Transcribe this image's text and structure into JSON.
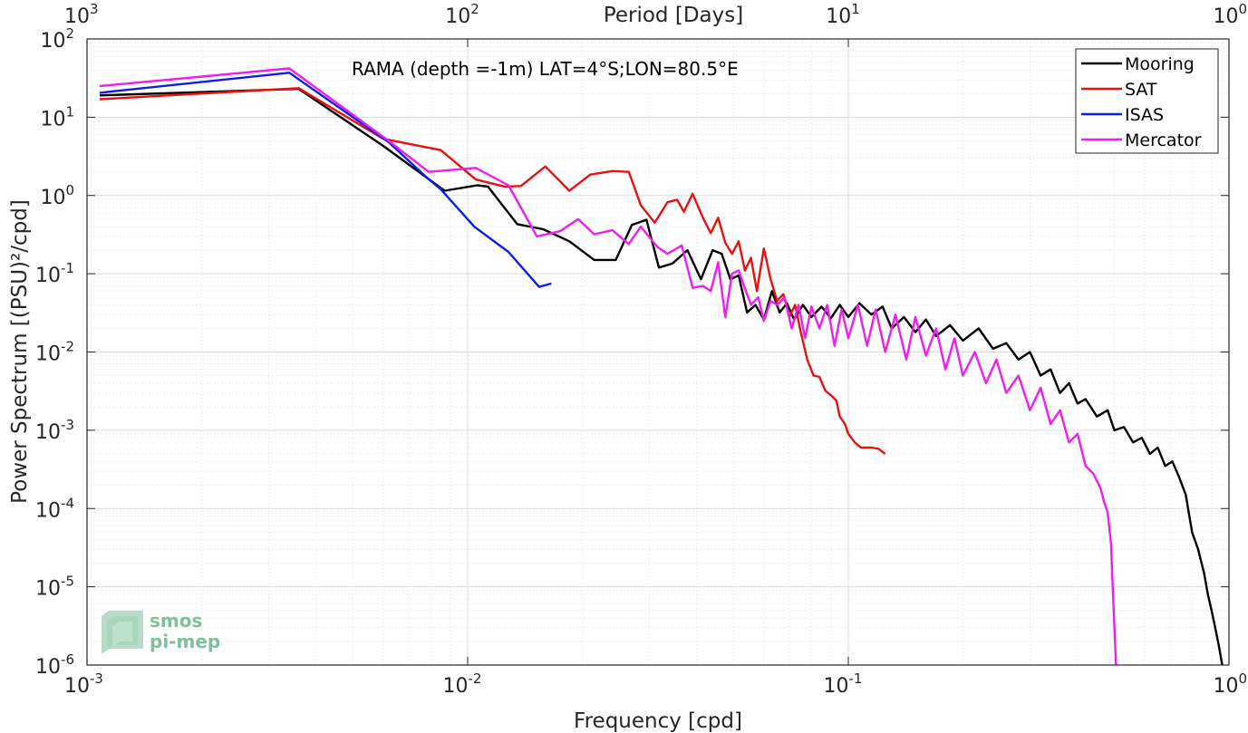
{
  "chart_data": {
    "type": "line",
    "title": "RAMA (depth =-1m) LAT=4°S;LON=80.5°E",
    "xlabel": "Frequency [cpd]",
    "ylabel": "Power Spectrum [(PSU)²/cpd]",
    "top_xlabel": "Period [Days]",
    "x_scale": "log",
    "y_scale": "log",
    "xlim": [
      0.001,
      1
    ],
    "ylim": [
      1e-06,
      100
    ],
    "grid": true,
    "minor_grid": true,
    "legend_position": "top-right",
    "x_ticks": [
      {
        "value": 0.001,
        "base": "10",
        "exp": "-3"
      },
      {
        "value": 0.01,
        "base": "10",
        "exp": "-2"
      },
      {
        "value": 0.1,
        "base": "10",
        "exp": "-1"
      },
      {
        "value": 1,
        "base": "10",
        "exp": "0"
      }
    ],
    "top_ticks": [
      {
        "value": 0.001,
        "base": "10",
        "exp": "3"
      },
      {
        "value": 0.01,
        "base": "10",
        "exp": "2"
      },
      {
        "value": 0.1,
        "base": "10",
        "exp": "1"
      },
      {
        "value": 1,
        "base": "10",
        "exp": "0"
      }
    ],
    "y_ticks": [
      {
        "value": 100,
        "base": "10",
        "exp": "2"
      },
      {
        "value": 10,
        "base": "10",
        "exp": "1"
      },
      {
        "value": 1,
        "base": "10",
        "exp": "0"
      },
      {
        "value": 0.1,
        "base": "10",
        "exp": "-1"
      },
      {
        "value": 0.01,
        "base": "10",
        "exp": "-2"
      },
      {
        "value": 0.001,
        "base": "10",
        "exp": "-3"
      },
      {
        "value": 0.0001,
        "base": "10",
        "exp": "-4"
      },
      {
        "value": 1e-05,
        "base": "10",
        "exp": "-5"
      },
      {
        "value": 1e-06,
        "base": "10",
        "exp": "-6"
      }
    ],
    "series": [
      {
        "name": "Mooring",
        "color": "#000000",
        "points": [
          [
            0.00108,
            19
          ],
          [
            0.0036,
            23
          ],
          [
            0.006,
            4.3
          ],
          [
            0.0087,
            1.15
          ],
          [
            0.0106,
            1.35
          ],
          [
            0.0113,
            1.3
          ],
          [
            0.0135,
            0.43
          ],
          [
            0.0158,
            0.37
          ],
          [
            0.0185,
            0.26
          ],
          [
            0.0215,
            0.15
          ],
          [
            0.0245,
            0.15
          ],
          [
            0.027,
            0.42
          ],
          [
            0.0295,
            0.49
          ],
          [
            0.0318,
            0.12
          ],
          [
            0.0345,
            0.135
          ],
          [
            0.0378,
            0.2
          ],
          [
            0.041,
            0.085
          ],
          [
            0.044,
            0.2
          ],
          [
            0.0465,
            0.18
          ],
          [
            0.049,
            0.085
          ],
          [
            0.0515,
            0.095
          ],
          [
            0.0542,
            0.032
          ],
          [
            0.057,
            0.04
          ],
          [
            0.06,
            0.026
          ],
          [
            0.063,
            0.06
          ],
          [
            0.066,
            0.032
          ],
          [
            0.069,
            0.042
          ],
          [
            0.072,
            0.026
          ],
          [
            0.076,
            0.04
          ],
          [
            0.08,
            0.028
          ],
          [
            0.085,
            0.038
          ],
          [
            0.09,
            0.027
          ],
          [
            0.095,
            0.04
          ],
          [
            0.1,
            0.028
          ],
          [
            0.107,
            0.042
          ],
          [
            0.115,
            0.03
          ],
          [
            0.123,
            0.038
          ],
          [
            0.13,
            0.02
          ],
          [
            0.14,
            0.028
          ],
          [
            0.15,
            0.018
          ],
          [
            0.16,
            0.026
          ],
          [
            0.17,
            0.016
          ],
          [
            0.185,
            0.022
          ],
          [
            0.2,
            0.014
          ],
          [
            0.22,
            0.02
          ],
          [
            0.24,
            0.011
          ],
          [
            0.26,
            0.013
          ],
          [
            0.28,
            0.008
          ],
          [
            0.3,
            0.01
          ],
          [
            0.32,
            0.005
          ],
          [
            0.34,
            0.006
          ],
          [
            0.36,
            0.003
          ],
          [
            0.38,
            0.004
          ],
          [
            0.4,
            0.0022
          ],
          [
            0.42,
            0.0025
          ],
          [
            0.45,
            0.0015
          ],
          [
            0.48,
            0.0018
          ],
          [
            0.5,
            0.001
          ],
          [
            0.53,
            0.0011
          ],
          [
            0.56,
            0.0007
          ],
          [
            0.59,
            0.0008
          ],
          [
            0.62,
            0.0005
          ],
          [
            0.65,
            0.0006
          ],
          [
            0.68,
            0.00035
          ],
          [
            0.71,
            0.0004
          ],
          [
            0.74,
            0.00025
          ],
          [
            0.77,
            0.00015
          ],
          [
            0.8,
            5e-05
          ],
          [
            0.83,
            3e-05
          ],
          [
            0.86,
            1.5e-05
          ],
          [
            0.88,
            8e-06
          ],
          [
            0.9,
            5e-06
          ],
          [
            0.92,
            3e-06
          ],
          [
            0.94,
            1.8e-06
          ],
          [
            0.96,
            1e-06
          ]
        ]
      },
      {
        "name": "SAT",
        "color": "#e8110f",
        "points": [
          [
            0.00108,
            17
          ],
          [
            0.0036,
            23.5
          ],
          [
            0.006,
            5.3
          ],
          [
            0.0085,
            3.8
          ],
          [
            0.0105,
            1.6
          ],
          [
            0.0125,
            1.3
          ],
          [
            0.0138,
            1.32
          ],
          [
            0.016,
            2.35
          ],
          [
            0.0185,
            1.15
          ],
          [
            0.021,
            1.85
          ],
          [
            0.024,
            2.05
          ],
          [
            0.0265,
            2.0
          ],
          [
            0.0285,
            0.75
          ],
          [
            0.031,
            0.45
          ],
          [
            0.0335,
            0.82
          ],
          [
            0.0355,
            0.88
          ],
          [
            0.037,
            0.62
          ],
          [
            0.039,
            1.05
          ],
          [
            0.0415,
            0.52
          ],
          [
            0.0435,
            0.33
          ],
          [
            0.0455,
            0.52
          ],
          [
            0.0475,
            0.25
          ],
          [
            0.0495,
            0.18
          ],
          [
            0.0515,
            0.26
          ],
          [
            0.0535,
            0.11
          ],
          [
            0.0555,
            0.16
          ],
          [
            0.0575,
            0.06
          ],
          [
            0.06,
            0.21
          ],
          [
            0.0625,
            0.085
          ],
          [
            0.065,
            0.045
          ],
          [
            0.0675,
            0.055
          ],
          [
            0.07,
            0.028
          ],
          [
            0.0725,
            0.04
          ],
          [
            0.075,
            0.018
          ],
          [
            0.078,
            0.008
          ],
          [
            0.081,
            0.005
          ],
          [
            0.084,
            0.0048
          ],
          [
            0.087,
            0.0032
          ],
          [
            0.09,
            0.0028
          ],
          [
            0.093,
            0.0024
          ],
          [
            0.095,
            0.0015
          ],
          [
            0.098,
            0.0012
          ],
          [
            0.1,
            0.0009
          ],
          [
            0.104,
            0.0007
          ],
          [
            0.108,
            0.0006
          ],
          [
            0.115,
            0.0006
          ],
          [
            0.12,
            0.00058
          ],
          [
            0.125,
            0.0005
          ]
        ]
      },
      {
        "name": "ISAS",
        "color": "#0a1ee6",
        "points": [
          [
            0.00108,
            20.5
          ],
          [
            0.0034,
            37
          ],
          [
            0.0062,
            4.8
          ],
          [
            0.0078,
            1.7
          ],
          [
            0.0085,
            1.2
          ],
          [
            0.0104,
            0.4
          ],
          [
            0.0128,
            0.19
          ],
          [
            0.0154,
            0.068
          ],
          [
            0.0166,
            0.075
          ]
        ]
      },
      {
        "name": "Mercator",
        "color": "#f01cf0",
        "points": [
          [
            0.00108,
            25
          ],
          [
            0.0034,
            42
          ],
          [
            0.0062,
            5.0
          ],
          [
            0.0079,
            2.0
          ],
          [
            0.0105,
            2.25
          ],
          [
            0.0128,
            1.35
          ],
          [
            0.0152,
            0.3
          ],
          [
            0.0175,
            0.35
          ],
          [
            0.0195,
            0.5
          ],
          [
            0.0215,
            0.32
          ],
          [
            0.024,
            0.36
          ],
          [
            0.0265,
            0.24
          ],
          [
            0.0285,
            0.4
          ],
          [
            0.0315,
            0.22
          ],
          [
            0.0335,
            0.18
          ],
          [
            0.0365,
            0.23
          ],
          [
            0.039,
            0.066
          ],
          [
            0.0415,
            0.07
          ],
          [
            0.0435,
            0.06
          ],
          [
            0.0455,
            0.14
          ],
          [
            0.0475,
            0.028
          ],
          [
            0.0495,
            0.1
          ],
          [
            0.0515,
            0.11
          ],
          [
            0.0535,
            0.065
          ],
          [
            0.0555,
            0.04
          ],
          [
            0.058,
            0.05
          ],
          [
            0.06,
            0.025
          ],
          [
            0.0625,
            0.045
          ],
          [
            0.065,
            0.04
          ],
          [
            0.068,
            0.05
          ],
          [
            0.071,
            0.02
          ],
          [
            0.074,
            0.04
          ],
          [
            0.077,
            0.015
          ],
          [
            0.08,
            0.038
          ],
          [
            0.084,
            0.02
          ],
          [
            0.088,
            0.04
          ],
          [
            0.092,
            0.012
          ],
          [
            0.096,
            0.035
          ],
          [
            0.1,
            0.015
          ],
          [
            0.106,
            0.04
          ],
          [
            0.112,
            0.012
          ],
          [
            0.118,
            0.035
          ],
          [
            0.125,
            0.01
          ],
          [
            0.133,
            0.03
          ],
          [
            0.142,
            0.008
          ],
          [
            0.15,
            0.028
          ],
          [
            0.16,
            0.009
          ],
          [
            0.17,
            0.02
          ],
          [
            0.18,
            0.006
          ],
          [
            0.19,
            0.015
          ],
          [
            0.2,
            0.005
          ],
          [
            0.215,
            0.01
          ],
          [
            0.23,
            0.004
          ],
          [
            0.245,
            0.008
          ],
          [
            0.26,
            0.003
          ],
          [
            0.28,
            0.005
          ],
          [
            0.3,
            0.0018
          ],
          [
            0.32,
            0.0035
          ],
          [
            0.34,
            0.0012
          ],
          [
            0.36,
            0.0018
          ],
          [
            0.38,
            0.0007
          ],
          [
            0.4,
            0.0009
          ],
          [
            0.42,
            0.00035
          ],
          [
            0.44,
            0.00028
          ],
          [
            0.46,
            0.00018
          ],
          [
            0.47,
            0.00012
          ],
          [
            0.48,
            9e-05
          ],
          [
            0.49,
            3.5e-05
          ],
          [
            0.495,
            1e-05
          ],
          [
            0.5,
            3e-06
          ],
          [
            0.505,
            1e-06
          ]
        ]
      }
    ]
  },
  "logo": {
    "line1": "smos",
    "line2": "pi-mep"
  }
}
